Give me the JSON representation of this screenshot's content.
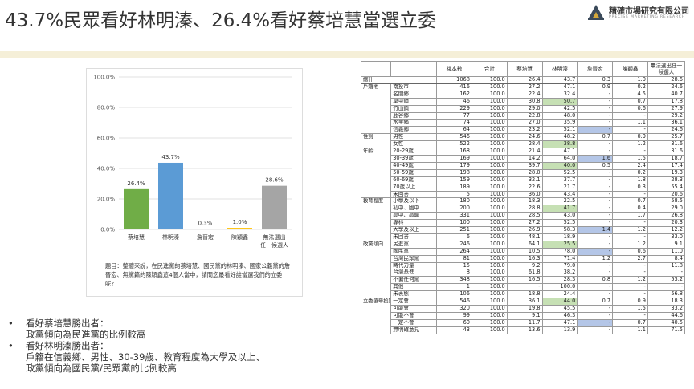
{
  "title": "43.7%民眾看好林明溱、26.4%看好蔡培慧當選立委",
  "logo": {
    "name": "精確市場研究有限公司",
    "sub": "PRECISE MARKETING RESEARCH"
  },
  "chart_data": {
    "type": "bar",
    "categories": [
      "蔡培慧",
      "林明溱",
      "詹晉宏",
      "陳穎鑫",
      "無法選出\n任一候選人"
    ],
    "values": [
      26.4,
      43.7,
      0.3,
      1.0,
      28.6
    ],
    "value_labels": [
      "26.4%",
      "43.7%",
      "0.3%",
      "1.0%",
      "28.6%"
    ],
    "colors": [
      "#70ad47",
      "#5b9bd5",
      "#ed7d31",
      "#ffc000",
      "#a5a5a5"
    ],
    "yticks": [
      "0.0%",
      "20.0%",
      "40.0%",
      "60.0%",
      "80.0%",
      "100.0%"
    ],
    "ylim": [
      0,
      100
    ],
    "grid": true
  },
  "question": "題目：整體來說，在民進黨的蔡培慧、國民黨的林明溱、國家公義黨的詹晉宏、無黨籍的陳穎鑫這4個人當中，請問您最看好誰當選我們的立委呢?",
  "bullets": [
    {
      "lines": [
        "看好蔡培慧勝出者：",
        "政黨傾向為民進黨的比例較高"
      ]
    },
    {
      "lines": [
        "看好林明溱勝出者：",
        "戶籍在信義鄉、男性、30-39歲、教育程度為大學及以上、",
        "政黨傾向為國民黨/民眾黨的比例較高"
      ]
    }
  ],
  "table": {
    "headers": [
      "",
      "",
      "樣本數",
      "合計",
      "蔡培慧",
      "林明溱",
      "詹晉宏",
      "陳穎鑫",
      "無法選出任一候選人"
    ],
    "groups": [
      {
        "name": "總計",
        "rows": [
          [
            "",
            "1068",
            "100.0",
            "26.4",
            "43.7",
            "0.3",
            "1.0",
            "28.6"
          ]
        ]
      },
      {
        "name": "戶籍地",
        "rows": [
          [
            "南投市",
            "416",
            "100.0",
            "27.2",
            "47.1",
            "0.9",
            "0.2",
            "24.6"
          ],
          [
            "名間鄉",
            "162",
            "100.0",
            "22.4",
            "32.4",
            "-",
            "4.5",
            "40.7"
          ],
          [
            "草屯鎮",
            "46",
            "100.0",
            "30.8",
            "50.7",
            "-",
            "0.7",
            "17.8"
          ],
          [
            "竹山鎮",
            "229",
            "100.0",
            "29.0",
            "42.5",
            "-",
            "0.6",
            "27.9"
          ],
          [
            "鹿谷鄉",
            "77",
            "100.0",
            "22.8",
            "48.0",
            "-",
            "-",
            "29.2"
          ],
          [
            "水里鄉",
            "74",
            "100.0",
            "27.0",
            "35.9",
            "-",
            "1.1",
            "36.1"
          ],
          [
            "信義鄉",
            "64",
            "100.0",
            "23.2",
            "52.1",
            "-",
            "-",
            "24.6"
          ]
        ]
      },
      {
        "name": "性別",
        "rows": [
          [
            "男性",
            "546",
            "100.0",
            "24.6",
            "48.2",
            "0.7",
            "0.9",
            "25.7"
          ],
          [
            "女性",
            "522",
            "100.0",
            "28.4",
            "38.8",
            "-",
            "1.2",
            "31.6"
          ]
        ]
      },
      {
        "name": "年齡",
        "rows": [
          [
            "20-29歲",
            "168",
            "100.0",
            "21.4",
            "47.1",
            "-",
            "-",
            "31.6"
          ],
          [
            "30-39歲",
            "169",
            "100.0",
            "14.2",
            "64.0",
            "1.6",
            "1.5",
            "18.7"
          ],
          [
            "40-49歲",
            "179",
            "100.0",
            "39.7",
            "40.0",
            "0.5",
            "2.4",
            "17.4"
          ],
          [
            "50-59歲",
            "198",
            "100.0",
            "28.0",
            "52.5",
            "-",
            "0.2",
            "19.3"
          ],
          [
            "60-69歲",
            "159",
            "100.0",
            "32.1",
            "37.7",
            "-",
            "1.8",
            "28.3"
          ],
          [
            "70歲以上",
            "189",
            "100.0",
            "22.6",
            "21.7",
            "-",
            "0.3",
            "55.4"
          ],
          [
            "未回答",
            "5",
            "100.0",
            "36.0",
            "43.4",
            "-",
            "-",
            "20.6"
          ]
        ]
      },
      {
        "name": "教育程度",
        "rows": [
          [
            "小學及以下",
            "180",
            "100.0",
            "18.3",
            "22.5",
            "-",
            "0.7",
            "58.5"
          ],
          [
            "初中、國中",
            "200",
            "100.0",
            "28.8",
            "41.7",
            "-",
            "0.4",
            "29.0"
          ],
          [
            "高中、高職",
            "331",
            "100.0",
            "28.5",
            "43.0",
            "-",
            "1.7",
            "26.8"
          ],
          [
            "專科",
            "100",
            "100.0",
            "27.2",
            "52.5",
            "-",
            "-",
            "20.3"
          ],
          [
            "大學及以上",
            "251",
            "100.0",
            "26.9",
            "58.3",
            "1.4",
            "1.2",
            "12.2"
          ],
          [
            "未回答",
            "6",
            "100.0",
            "48.1",
            "18.9",
            "-",
            "-",
            "33.0"
          ]
        ]
      },
      {
        "name": "政黨傾向",
        "rows": [
          [
            "民進黨",
            "246",
            "100.0",
            "64.1",
            "25.5",
            "-",
            "1.2",
            "9.1"
          ],
          [
            "國民黨",
            "264",
            "100.0",
            "10.5",
            "78.0",
            "-",
            "0.6",
            "11.0"
          ],
          [
            "台灣民眾黨",
            "81",
            "100.0",
            "16.3",
            "71.4",
            "1.2",
            "2.7",
            "8.4"
          ],
          [
            "時代力量",
            "15",
            "100.0",
            "9.2",
            "79.0",
            "-",
            "-",
            "11.8"
          ],
          [
            "台灣基進",
            "8",
            "100.0",
            "61.8",
            "38.2",
            "-",
            "-",
            "-"
          ],
          [
            "不偏任何黨",
            "348",
            "100.0",
            "16.5",
            "28.3",
            "0.8",
            "1.2",
            "53.2"
          ],
          [
            "其他",
            "1",
            "100.0",
            "-",
            "100.0",
            "-",
            "-",
            "-"
          ],
          [
            "未表態",
            "106",
            "100.0",
            "18.8",
            "24.4",
            "-",
            "-",
            "56.8"
          ]
        ]
      },
      {
        "name": "立委選舉投票意願",
        "rows": [
          [
            "一定會",
            "546",
            "100.0",
            "36.1",
            "44.0",
            "0.7",
            "0.9",
            "18.3"
          ],
          [
            "可能會",
            "320",
            "100.0",
            "19.8",
            "45.5",
            "-",
            "1.5",
            "33.2"
          ],
          [
            "可能不會",
            "99",
            "100.0",
            "9.1",
            "46.3",
            "-",
            "-",
            "44.6"
          ],
          [
            "一定不會",
            "60",
            "100.0",
            "11.7",
            "47.1",
            "-",
            "0.7",
            "40.5"
          ],
          [
            "無明確意見",
            "43",
            "100.0",
            "13.6",
            "13.9",
            "-",
            "1.1",
            "71.5"
          ]
        ]
      }
    ],
    "highlights_green": [
      [
        "戶籍地",
        2,
        2
      ],
      [
        "性別",
        1,
        2
      ],
      [
        "年齡",
        2,
        2
      ],
      [
        "教育程度",
        1,
        2
      ],
      [
        "政黨傾向",
        0,
        2
      ],
      [
        "立委選舉投票意願",
        0,
        2
      ]
    ],
    "highlights_blue": [
      [
        "戶籍地",
        6,
        3
      ],
      [
        "年齡",
        1,
        3
      ],
      [
        "教育程度",
        4,
        3
      ],
      [
        "政黨傾向",
        1,
        3
      ],
      [
        "立委選舉投票意願",
        3,
        3
      ]
    ]
  }
}
